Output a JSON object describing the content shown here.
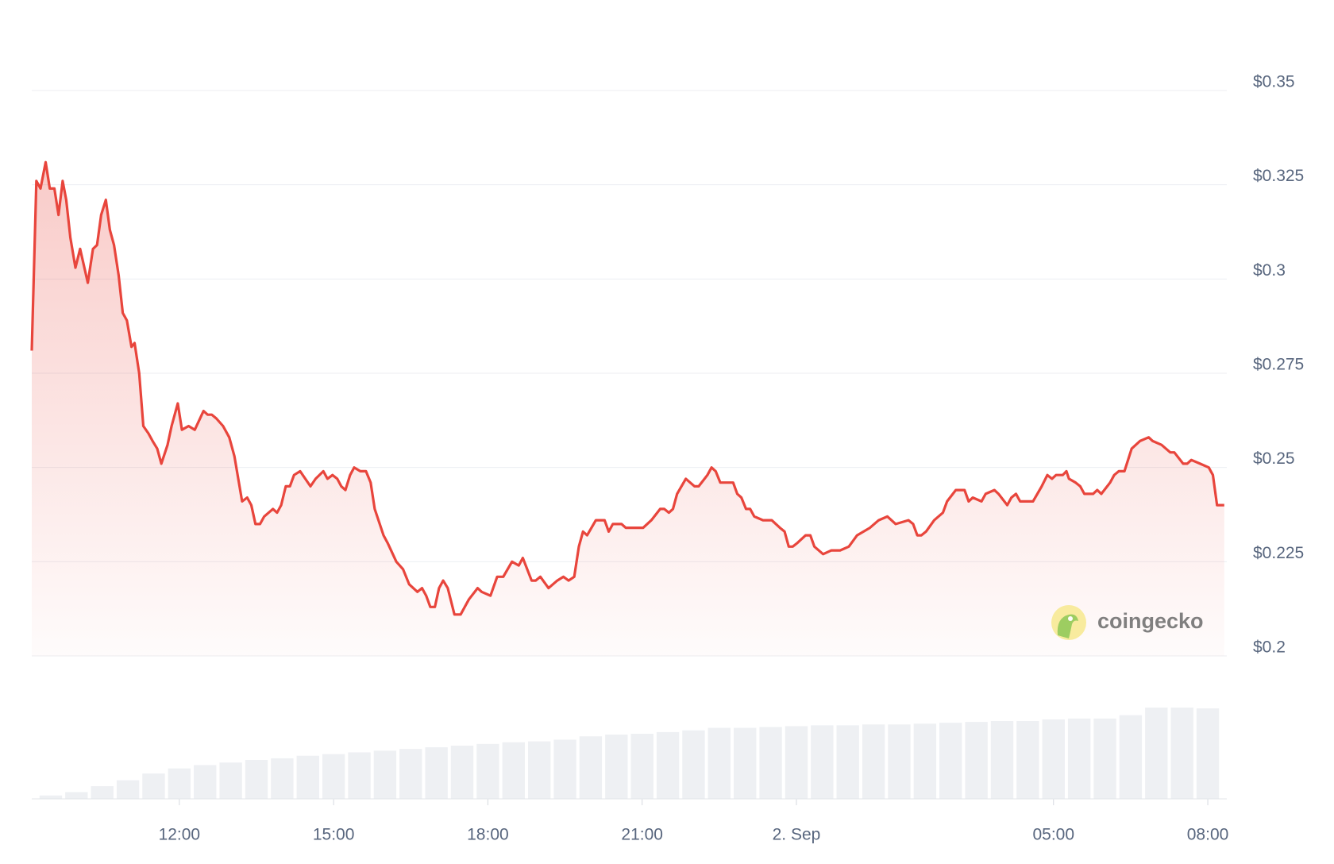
{
  "chart_data": {
    "type": "line",
    "brand": "coingecko",
    "xlim": [
      9.13,
      32.37
    ],
    "xticks": [
      {
        "value": 12,
        "label": "12:00"
      },
      {
        "value": 15,
        "label": "15:00"
      },
      {
        "value": 18,
        "label": "18:00"
      },
      {
        "value": 21,
        "label": "21:00"
      },
      {
        "value": 24,
        "label": "2. Sep"
      },
      {
        "value": 29,
        "label": "05:00"
      },
      {
        "value": 32,
        "label": "08:00"
      }
    ],
    "ylim": [
      0.2,
      0.35
    ],
    "yticks": [
      {
        "value": 0.2,
        "label": "$0.2"
      },
      {
        "value": 0.225,
        "label": "$0.225"
      },
      {
        "value": 0.25,
        "label": "$0.25"
      },
      {
        "value": 0.275,
        "label": "$0.275"
      },
      {
        "value": 0.3,
        "label": "$0.3"
      },
      {
        "value": 0.325,
        "label": "$0.325"
      },
      {
        "value": 0.35,
        "label": "$0.35"
      }
    ],
    "grid": true,
    "x": [
      9.13,
      9.22,
      9.3,
      9.4,
      9.48,
      9.57,
      9.65,
      9.73,
      9.8,
      9.88,
      9.98,
      10.07,
      10.22,
      10.32,
      10.4,
      10.48,
      10.57,
      10.65,
      10.73,
      10.82,
      10.9,
      10.98,
      11.07,
      11.13,
      11.22,
      11.3,
      11.4,
      11.48,
      11.57,
      11.65,
      11.77,
      11.85,
      11.97,
      12.05,
      12.18,
      12.3,
      12.47,
      12.55,
      12.63,
      12.72,
      12.85,
      12.97,
      13.07,
      13.22,
      13.32,
      13.4,
      13.48,
      13.57,
      13.65,
      13.82,
      13.9,
      13.98,
      14.07,
      14.15,
      14.23,
      14.35,
      14.55,
      14.65,
      14.8,
      14.88,
      14.98,
      15.07,
      15.15,
      15.23,
      15.32,
      15.4,
      15.52,
      15.63,
      15.72,
      15.8,
      15.97,
      16.05,
      16.22,
      16.35,
      16.47,
      16.63,
      16.72,
      16.8,
      16.88,
      16.97,
      17.05,
      17.13,
      17.22,
      17.35,
      17.47,
      17.63,
      17.8,
      17.88,
      18.05,
      18.18,
      18.3,
      18.47,
      18.6,
      18.68,
      18.85,
      18.93,
      19.02,
      19.18,
      19.35,
      19.47,
      19.57,
      19.68,
      19.77,
      19.85,
      19.93,
      20.1,
      20.27,
      20.35,
      20.43,
      20.6,
      20.68,
      20.85,
      21.02,
      21.18,
      21.35,
      21.43,
      21.52,
      21.6,
      21.68,
      21.85,
      22.02,
      22.1,
      22.27,
      22.35,
      22.43,
      22.52,
      22.68,
      22.77,
      22.85,
      22.93,
      23.02,
      23.1,
      23.18,
      23.35,
      23.52,
      23.68,
      23.77,
      23.85,
      23.93,
      24.02,
      24.18,
      24.27,
      24.35,
      24.52,
      24.68,
      24.85,
      25.02,
      25.18,
      25.43,
      25.6,
      25.77,
      25.93,
      26.18,
      26.27,
      26.35,
      26.43,
      26.52,
      26.68,
      26.85,
      26.93,
      27.1,
      27.27,
      27.35,
      27.43,
      27.6,
      27.68,
      27.85,
      27.93,
      28.1,
      28.18,
      28.27,
      28.35,
      28.6,
      28.77,
      28.88,
      28.97,
      29.05,
      29.18,
      29.25,
      29.3,
      29.43,
      29.52,
      29.6,
      29.77,
      29.85,
      29.93,
      30.1,
      30.18,
      30.27,
      30.38,
      30.52,
      30.68,
      30.85,
      30.93,
      31.1,
      31.27,
      31.35,
      31.52,
      31.6,
      31.68,
      31.85,
      32.02,
      32.1,
      32.18,
      32.32
    ],
    "series": [
      {
        "color": "#e8453c",
        "values": [
          0.281,
          0.326,
          0.324,
          0.331,
          0.324,
          0.324,
          0.317,
          0.326,
          0.321,
          0.311,
          0.303,
          0.308,
          0.299,
          0.308,
          0.309,
          0.317,
          0.321,
          0.313,
          0.309,
          0.301,
          0.291,
          0.289,
          0.282,
          0.283,
          0.275,
          0.261,
          0.259,
          0.257,
          0.255,
          0.251,
          0.256,
          0.261,
          0.267,
          0.26,
          0.261,
          0.26,
          0.265,
          0.264,
          0.264,
          0.263,
          0.261,
          0.258,
          0.253,
          0.241,
          0.242,
          0.24,
          0.235,
          0.235,
          0.237,
          0.239,
          0.238,
          0.24,
          0.245,
          0.245,
          0.248,
          0.249,
          0.245,
          0.247,
          0.249,
          0.247,
          0.248,
          0.247,
          0.245,
          0.244,
          0.248,
          0.25,
          0.249,
          0.249,
          0.246,
          0.239,
          0.232,
          0.23,
          0.225,
          0.223,
          0.219,
          0.217,
          0.218,
          0.216,
          0.213,
          0.213,
          0.218,
          0.22,
          0.218,
          0.211,
          0.211,
          0.215,
          0.218,
          0.217,
          0.216,
          0.221,
          0.221,
          0.225,
          0.224,
          0.226,
          0.22,
          0.22,
          0.221,
          0.218,
          0.22,
          0.221,
          0.22,
          0.221,
          0.229,
          0.233,
          0.232,
          0.236,
          0.236,
          0.233,
          0.235,
          0.235,
          0.234,
          0.234,
          0.234,
          0.236,
          0.239,
          0.239,
          0.238,
          0.239,
          0.243,
          0.247,
          0.245,
          0.245,
          0.248,
          0.25,
          0.249,
          0.246,
          0.246,
          0.246,
          0.243,
          0.242,
          0.239,
          0.239,
          0.237,
          0.236,
          0.236,
          0.234,
          0.233,
          0.229,
          0.229,
          0.23,
          0.232,
          0.232,
          0.229,
          0.227,
          0.228,
          0.228,
          0.229,
          0.232,
          0.234,
          0.236,
          0.237,
          0.235,
          0.236,
          0.235,
          0.232,
          0.232,
          0.233,
          0.236,
          0.238,
          0.241,
          0.244,
          0.244,
          0.241,
          0.242,
          0.241,
          0.243,
          0.244,
          0.243,
          0.24,
          0.242,
          0.243,
          0.241,
          0.241,
          0.245,
          0.248,
          0.247,
          0.248,
          0.248,
          0.249,
          0.247,
          0.246,
          0.245,
          0.243,
          0.243,
          0.244,
          0.243,
          0.246,
          0.248,
          0.249,
          0.249,
          0.255,
          0.257,
          0.258,
          0.257,
          0.256,
          0.254,
          0.254,
          0.251,
          0.251,
          0.252,
          0.251,
          0.25,
          0.248,
          0.24,
          0.24
        ]
      }
    ],
    "volume": {
      "color": "#eef0f3",
      "x": [
        9.5,
        10,
        10.5,
        11,
        11.5,
        12,
        12.5,
        13,
        13.5,
        14,
        14.5,
        15,
        15.5,
        16,
        16.5,
        17,
        17.5,
        18,
        18.5,
        19,
        19.5,
        20,
        20.5,
        21,
        21.5,
        22,
        22.5,
        23,
        23.5,
        24,
        24.5,
        25,
        25.5,
        26,
        26.5,
        27,
        27.5,
        28,
        28.5,
        29,
        29.5,
        30,
        30.5,
        31,
        31.5,
        32
      ],
      "values": [
        4,
        8,
        15,
        22,
        30,
        36,
        40,
        43,
        46,
        48,
        51,
        53,
        55,
        57,
        59,
        61,
        63,
        65,
        67,
        68,
        70,
        74,
        76,
        77,
        79,
        81,
        84,
        84,
        85,
        86,
        87,
        87,
        88,
        88,
        89,
        90,
        91,
        92,
        92,
        94,
        95,
        95,
        99,
        108,
        108,
        107
      ]
    }
  }
}
